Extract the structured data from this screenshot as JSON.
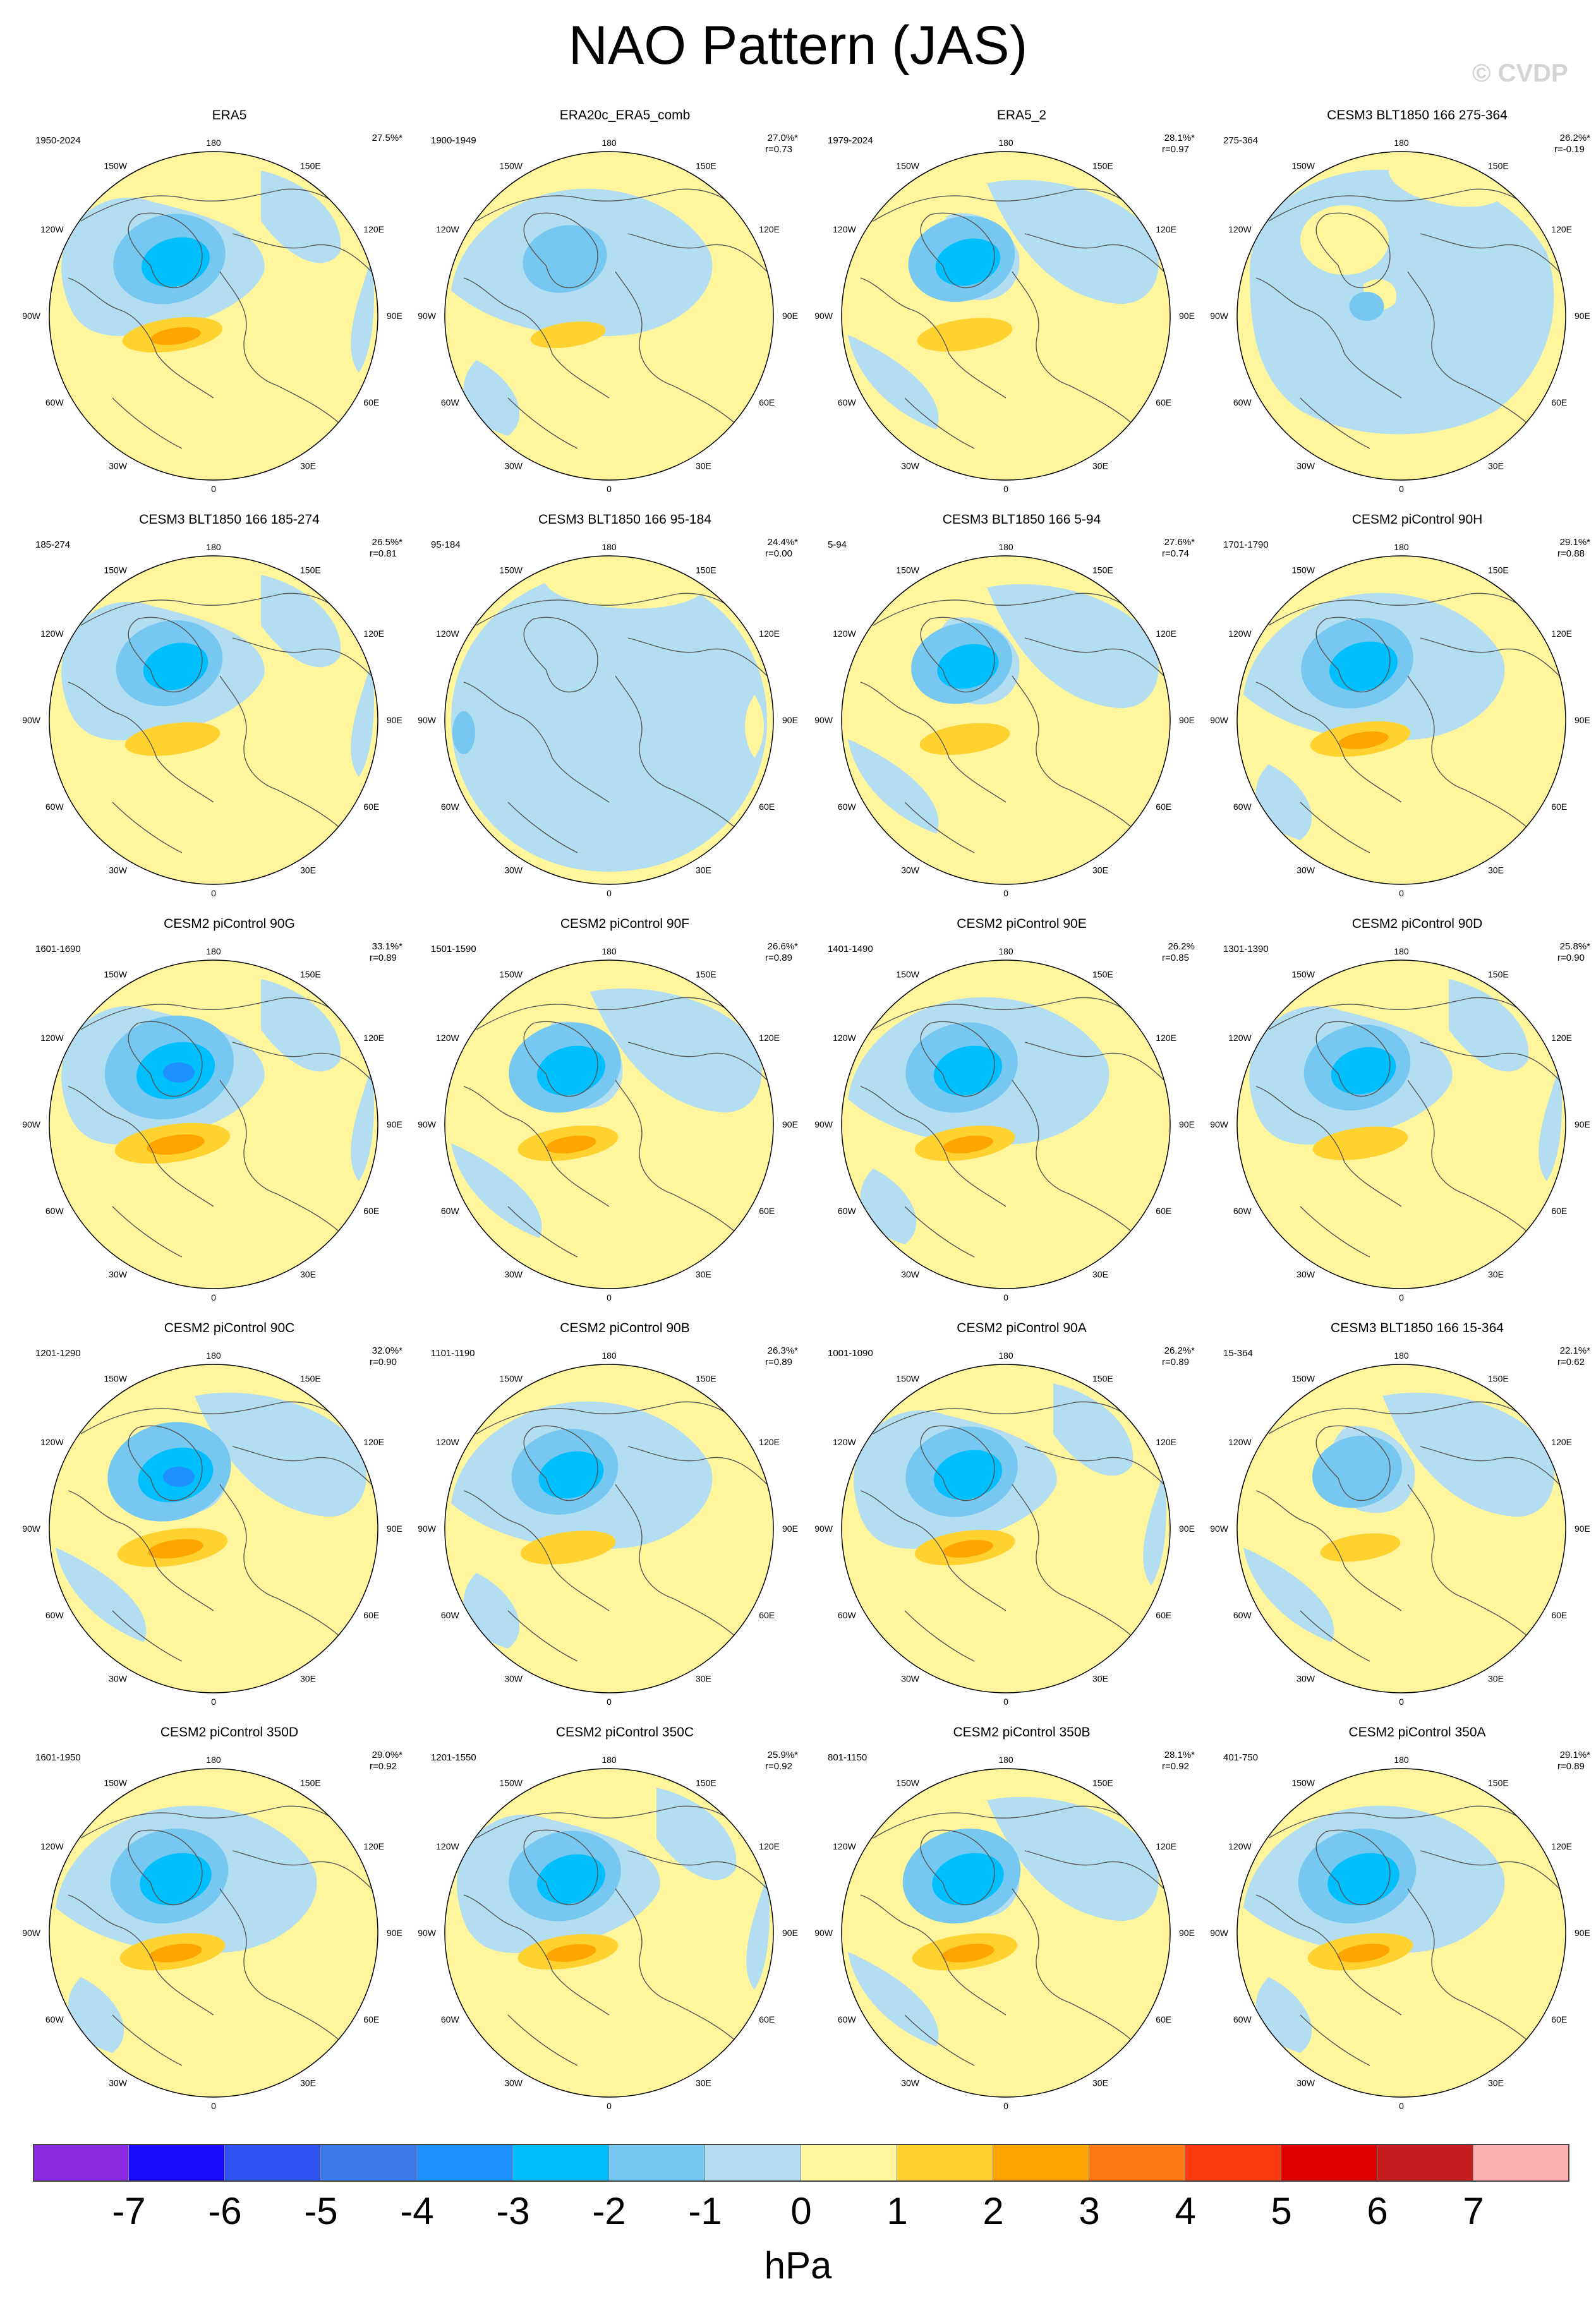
{
  "title": "NAO Pattern (JAS)",
  "watermark": "© CVDP",
  "units": "hPa",
  "longitude_labels": [
    "180",
    "150E",
    "120E",
    "90E",
    "60E",
    "30E",
    "0",
    "30W",
    "60W",
    "90W",
    "120W",
    "150W"
  ],
  "colorbar": {
    "colors": [
      "#8a2be2",
      "#1a0dff",
      "#2d52f0",
      "#3b7ae8",
      "#1e90ff",
      "#00bfff",
      "#76c8f0",
      "#b3def2",
      "#fff59d",
      "#ffd230",
      "#ffa500",
      "#ff7a10",
      "#ff3a10",
      "#e00000",
      "#c41e1e",
      "#ffb0b0"
    ],
    "labels": [
      "-7",
      "-6",
      "-5",
      "-4",
      "-3",
      "-2",
      "-1",
      "0",
      "1",
      "2",
      "3",
      "4",
      "5",
      "6",
      "7"
    ]
  },
  "panels": [
    {
      "title": "ERA5",
      "period": "1950-2024",
      "pct": "27.5%*",
      "corr": "",
      "variant": "a",
      "strength": 1.0
    },
    {
      "title": "ERA20c_ERA5_comb",
      "period": "1900-1949",
      "pct": "27.0%*",
      "corr": "r=0.73",
      "variant": "b",
      "strength": 0.75
    },
    {
      "title": "ERA5_2",
      "period": "1979-2024",
      "pct": "28.1%*",
      "corr": "r=0.97",
      "variant": "c",
      "strength": 0.95
    },
    {
      "title": "CESM3 BLT1850 166 275-364",
      "period": "275-364",
      "pct": "26.2%*",
      "corr": "r=-0.19",
      "variant": "d",
      "strength": 0.5
    },
    {
      "title": "CESM3 BLT1850 166 185-274",
      "period": "185-274",
      "pct": "26.5%*",
      "corr": "r=0.81",
      "variant": "a",
      "strength": 0.95
    },
    {
      "title": "CESM3 BLT1850 166 95-184",
      "period": "95-184",
      "pct": "24.4%*",
      "corr": "r=0.00",
      "variant": "e",
      "strength": 0.4
    },
    {
      "title": "CESM3 BLT1850 166 5-94",
      "period": "5-94",
      "pct": "27.6%*",
      "corr": "r=0.74",
      "variant": "c",
      "strength": 0.9
    },
    {
      "title": "CESM2 piControl 90H",
      "period": "1701-1790",
      "pct": "29.1%*",
      "corr": "r=0.88",
      "variant": "b",
      "strength": 1.0
    },
    {
      "title": "CESM2 piControl 90G",
      "period": "1601-1690",
      "pct": "33.1%*",
      "corr": "r=0.89",
      "variant": "a",
      "strength": 1.15
    },
    {
      "title": "CESM2 piControl 90F",
      "period": "1501-1590",
      "pct": "26.6%*",
      "corr": "r=0.89",
      "variant": "c",
      "strength": 1.0
    },
    {
      "title": "CESM2 piControl 90E",
      "period": "1401-1490",
      "pct": "26.2%",
      "corr": "r=0.85",
      "variant": "b",
      "strength": 1.0
    },
    {
      "title": "CESM2 piControl 90D",
      "period": "1301-1390",
      "pct": "25.8%*",
      "corr": "r=0.90",
      "variant": "a",
      "strength": 0.95
    },
    {
      "title": "CESM2 piControl 90C",
      "period": "1201-1290",
      "pct": "32.0%*",
      "corr": "r=0.90",
      "variant": "c",
      "strength": 1.1
    },
    {
      "title": "CESM2 piControl 90B",
      "period": "1101-1190",
      "pct": "26.3%*",
      "corr": "r=0.89",
      "variant": "b",
      "strength": 0.95
    },
    {
      "title": "CESM2 piControl 90A",
      "period": "1001-1090",
      "pct": "26.2%*",
      "corr": "r=0.89",
      "variant": "a",
      "strength": 1.0
    },
    {
      "title": "CESM3 BLT1850 166 15-364",
      "period": "15-364",
      "pct": "22.1%*",
      "corr": "r=0.62",
      "variant": "c",
      "strength": 0.8
    },
    {
      "title": "CESM2 piControl 350D",
      "period": "1601-1950",
      "pct": "29.0%*",
      "corr": "r=0.92",
      "variant": "b",
      "strength": 1.05
    },
    {
      "title": "CESM2 piControl 350C",
      "period": "1201-1550",
      "pct": "25.9%*",
      "corr": "r=0.92",
      "variant": "a",
      "strength": 1.0
    },
    {
      "title": "CESM2 piControl 350B",
      "period": "801-1150",
      "pct": "28.1%*",
      "corr": "r=0.92",
      "variant": "c",
      "strength": 1.05
    },
    {
      "title": "CESM2 piControl 350A",
      "period": "401-750",
      "pct": "29.1%*",
      "corr": "r=0.89",
      "variant": "b",
      "strength": 1.05
    }
  ]
}
